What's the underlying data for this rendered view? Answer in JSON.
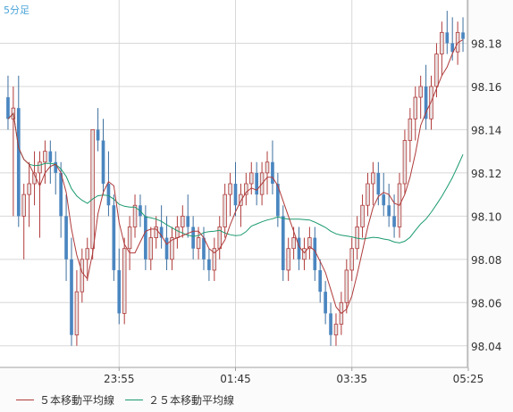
{
  "timeframe_label": "5分足",
  "colors": {
    "up": "#e8e0e0",
    "up_border": "#b03a3a",
    "down": "#4a86c0",
    "down_border": "#3d6f9f",
    "ma5": "#b03a3a",
    "ma25": "#1a9a6e",
    "grid": "#d8d8d8",
    "frame": "#a0a0a0"
  },
  "legend": [
    {
      "label": "５本移動平均線",
      "color": "#b03a3a"
    },
    {
      "label": "２５本移動平均線",
      "color": "#1a9a6e"
    }
  ],
  "chart_data": {
    "type": "candlestick",
    "title": "",
    "y_range": [
      98.03,
      98.2
    ],
    "y_ticks": [
      "98.04",
      "98.06",
      "98.08",
      "98.10",
      "98.12",
      "98.14",
      "98.16",
      "98.18"
    ],
    "x_ticks": [
      "23:55",
      "01:45",
      "03:35",
      "05:25"
    ],
    "x_tick_index": [
      21,
      43,
      65,
      87
    ],
    "grid": true,
    "candles": [
      [
        98.155,
        98.165,
        98.14,
        98.145
      ],
      [
        98.145,
        98.16,
        98.1,
        98.15
      ],
      [
        98.15,
        98.165,
        98.095,
        98.1
      ],
      [
        98.1,
        98.115,
        98.08,
        98.11
      ],
      [
        98.11,
        98.125,
        98.095,
        98.115
      ],
      [
        98.115,
        98.13,
        98.105,
        98.12
      ],
      [
        98.12,
        98.13,
        98.09,
        98.125
      ],
      [
        98.125,
        98.135,
        98.115,
        98.13
      ],
      [
        98.13,
        98.135,
        98.115,
        98.125
      ],
      [
        98.125,
        98.13,
        98.11,
        98.12
      ],
      [
        98.12,
        98.125,
        98.09,
        98.1
      ],
      [
        98.1,
        98.11,
        98.07,
        98.08
      ],
      [
        98.08,
        98.09,
        98.04,
        98.045
      ],
      [
        98.045,
        98.075,
        98.04,
        98.065
      ],
      [
        98.065,
        98.085,
        98.06,
        98.08
      ],
      [
        98.08,
        98.09,
        98.07,
        98.085
      ],
      [
        98.085,
        98.14,
        98.08,
        98.14
      ],
      [
        98.14,
        98.15,
        98.13,
        98.135
      ],
      [
        98.135,
        98.145,
        98.11,
        98.115
      ],
      [
        98.115,
        98.13,
        98.1,
        98.105
      ],
      [
        98.105,
        98.11,
        98.07,
        98.075
      ],
      [
        98.075,
        98.085,
        98.05,
        98.055
      ],
      [
        98.055,
        98.09,
        98.05,
        98.085
      ],
      [
        98.085,
        98.1,
        98.075,
        98.095
      ],
      [
        98.095,
        98.11,
        98.09,
        98.105
      ],
      [
        98.105,
        98.11,
        98.095,
        98.1
      ],
      [
        98.1,
        98.105,
        98.075,
        98.08
      ],
      [
        98.08,
        98.095,
        98.075,
        98.09
      ],
      [
        98.09,
        98.1,
        98.085,
        98.095
      ],
      [
        98.095,
        98.105,
        98.085,
        98.09
      ],
      [
        98.09,
        98.1,
        98.075,
        98.08
      ],
      [
        98.08,
        98.095,
        98.075,
        98.09
      ],
      [
        98.09,
        98.1,
        98.085,
        98.095
      ],
      [
        98.095,
        98.105,
        98.09,
        98.1
      ],
      [
        98.1,
        98.11,
        98.09,
        98.095
      ],
      [
        98.095,
        98.1,
        98.08,
        98.085
      ],
      [
        98.085,
        98.095,
        98.08,
        98.09
      ],
      [
        98.09,
        98.095,
        98.075,
        98.08
      ],
      [
        98.08,
        98.085,
        98.07,
        98.075
      ],
      [
        98.075,
        98.09,
        98.07,
        98.085
      ],
      [
        98.085,
        98.1,
        98.08,
        98.095
      ],
      [
        98.095,
        98.115,
        98.09,
        98.11
      ],
      [
        98.11,
        98.12,
        98.1,
        98.115
      ],
      [
        98.115,
        98.125,
        98.1,
        98.105
      ],
      [
        98.105,
        98.115,
        98.095,
        98.11
      ],
      [
        98.11,
        98.12,
        98.105,
        98.115
      ],
      [
        98.115,
        98.125,
        98.11,
        98.12
      ],
      [
        98.12,
        98.125,
        98.105,
        98.11
      ],
      [
        98.11,
        98.125,
        98.105,
        98.12
      ],
      [
        98.12,
        98.13,
        98.11,
        98.125
      ],
      [
        98.125,
        98.135,
        98.11,
        98.115
      ],
      [
        98.115,
        98.12,
        98.095,
        98.1
      ],
      [
        98.1,
        98.105,
        98.07,
        98.075
      ],
      [
        98.075,
        98.09,
        98.07,
        98.085
      ],
      [
        98.085,
        98.095,
        98.08,
        98.09
      ],
      [
        98.09,
        98.095,
        98.075,
        98.08
      ],
      [
        98.08,
        98.09,
        98.075,
        98.085
      ],
      [
        98.085,
        98.095,
        98.08,
        98.09
      ],
      [
        98.09,
        98.095,
        98.07,
        98.075
      ],
      [
        98.075,
        98.08,
        98.06,
        98.065
      ],
      [
        98.065,
        98.07,
        98.05,
        98.055
      ],
      [
        98.055,
        98.06,
        98.04,
        98.045
      ],
      [
        98.045,
        98.055,
        98.04,
        98.05
      ],
      [
        98.05,
        98.065,
        98.045,
        98.06
      ],
      [
        98.06,
        98.08,
        98.055,
        98.075
      ],
      [
        98.075,
        98.09,
        98.07,
        98.085
      ],
      [
        98.085,
        98.1,
        98.08,
        98.095
      ],
      [
        98.095,
        98.11,
        98.09,
        98.105
      ],
      [
        98.105,
        98.12,
        98.1,
        98.115
      ],
      [
        98.115,
        98.125,
        98.105,
        98.12
      ],
      [
        98.12,
        98.125,
        98.105,
        98.11
      ],
      [
        98.11,
        98.12,
        98.1,
        98.105
      ],
      [
        98.105,
        98.115,
        98.095,
        98.1
      ],
      [
        98.1,
        98.11,
        98.09,
        98.095
      ],
      [
        98.095,
        98.12,
        98.09,
        98.115
      ],
      [
        98.115,
        98.14,
        98.11,
        98.135
      ],
      [
        98.135,
        98.15,
        98.125,
        98.145
      ],
      [
        98.145,
        98.16,
        98.135,
        98.155
      ],
      [
        98.155,
        98.165,
        98.145,
        98.16
      ],
      [
        98.16,
        98.17,
        98.14,
        98.145
      ],
      [
        98.145,
        98.165,
        98.14,
        98.16
      ],
      [
        98.16,
        98.18,
        98.155,
        98.175
      ],
      [
        98.175,
        98.19,
        98.165,
        98.185
      ],
      [
        98.185,
        98.195,
        98.175,
        98.18
      ],
      [
        98.18,
        98.192,
        98.172,
        98.176
      ],
      [
        98.176,
        98.19,
        98.17,
        98.185
      ],
      [
        98.185,
        98.192,
        98.176,
        98.182
      ]
    ],
    "ma5_note": "5-period moving average of close",
    "ma25_note": "25-period moving average of close"
  }
}
